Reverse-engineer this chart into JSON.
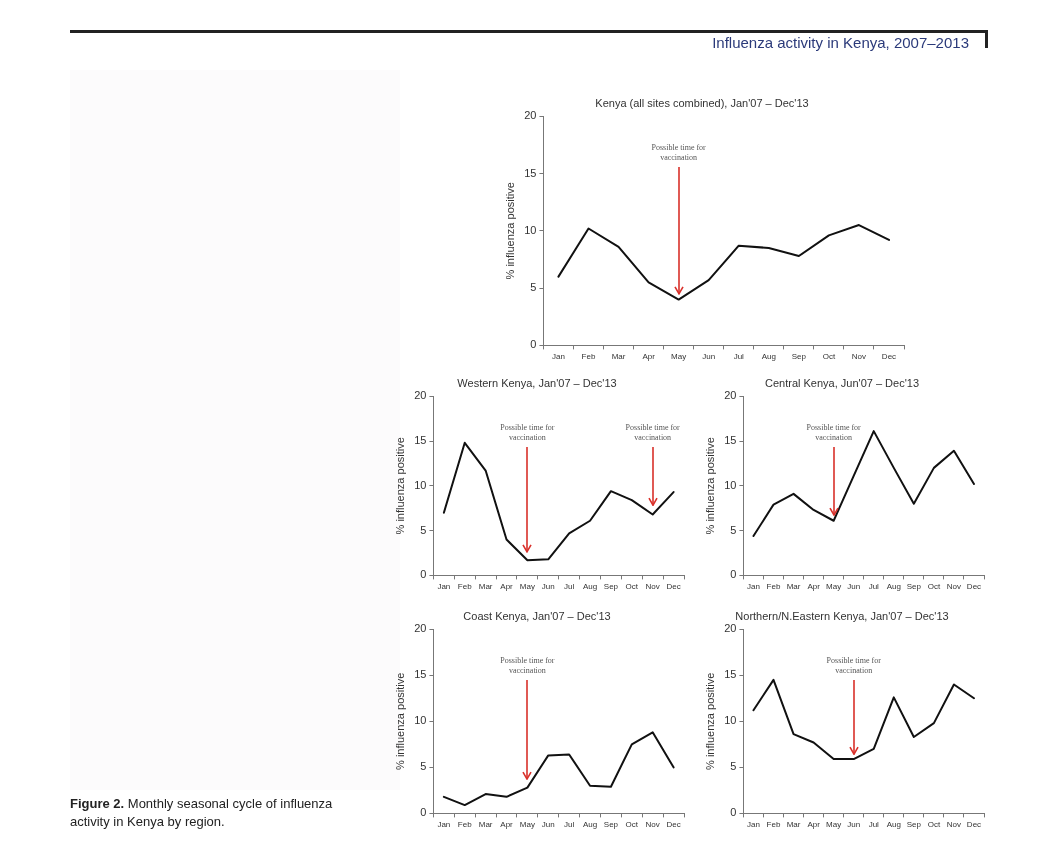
{
  "chart_data": [
    {
      "type": "line",
      "title": "Kenya (all sites combined), Jan'07 – Dec'13",
      "ylabel": "% influenza positive",
      "categories": [
        "Jan",
        "Feb",
        "Mar",
        "Apr",
        "May",
        "Jun",
        "Jul",
        "Aug",
        "Sep",
        "Oct",
        "Nov",
        "Dec"
      ],
      "series": [
        {
          "color": "#111111",
          "values": [
            6.0,
            10.2,
            8.6,
            5.5,
            4.0,
            5.7,
            8.7,
            8.5,
            7.8,
            9.6,
            10.5,
            9.2
          ]
        }
      ],
      "ylim": [
        0,
        20
      ],
      "yticks": [
        0,
        5,
        10,
        15,
        20
      ],
      "grid": false,
      "legend": false,
      "marker": "none",
      "line_style": "solid",
      "annotations": [
        "Influenza activity in Kenya, 2007–2013",
        "Figure 2. Monthly seasonal cycle of influenza activity in Kenya by region.",
        {
          "text": "Possible time for vaccination",
          "x": "May",
          "y": 4.4
        }
      ]
    },
    {
      "type": "line",
      "title": "Western Kenya, Jan'07 – Dec'13",
      "ylabel": "% influenza positive",
      "categories": [
        "Jan",
        "Feb",
        "Mar",
        "Apr",
        "May",
        "Jun",
        "Jul",
        "Aug",
        "Sep",
        "Oct",
        "Nov",
        "Dec"
      ],
      "series": [
        {
          "color": "#111111",
          "values": [
            7.0,
            14.8,
            11.7,
            4.0,
            1.7,
            1.8,
            4.7,
            6.1,
            9.4,
            8.4,
            6.8,
            9.3
          ]
        }
      ],
      "ylim": [
        0,
        20
      ],
      "yticks": [
        0,
        5,
        10,
        15,
        20
      ],
      "grid": false,
      "legend": false,
      "marker": "none",
      "line_style": "solid",
      "annotations": [
        {
          "text": "Possible time for vaccination",
          "x": "May",
          "y": 2.5
        },
        {
          "text": "Possible time for vaccination",
          "x": "Nov",
          "y": 7.7
        }
      ]
    },
    {
      "type": "line",
      "title": "Central Kenya, Jun'07 – Dec'13",
      "ylabel": "% influenza positive",
      "categories": [
        "Jan",
        "Feb",
        "Mar",
        "Apr",
        "May",
        "Jun",
        "Jul",
        "Aug",
        "Sep",
        "Oct",
        "Nov",
        "Dec"
      ],
      "series": [
        {
          "color": "#111111",
          "values": [
            4.4,
            7.9,
            9.1,
            7.3,
            6.1,
            11.1,
            16.1,
            12.0,
            8.0,
            12.0,
            13.9,
            10.2
          ]
        }
      ],
      "ylim": [
        0,
        20
      ],
      "yticks": [
        0,
        5,
        10,
        15,
        20
      ],
      "grid": false,
      "legend": false,
      "marker": "none",
      "line_style": "solid",
      "annotations": [
        {
          "text": "Possible time for vaccination",
          "x": "May",
          "y": 6.6
        }
      ]
    },
    {
      "type": "line",
      "title": "Coast Kenya, Jan'07 – Dec'13",
      "ylabel": "% influenza positive",
      "categories": [
        "Jan",
        "Feb",
        "Mar",
        "Apr",
        "May",
        "Jun",
        "Jul",
        "Aug",
        "Sep",
        "Oct",
        "Nov",
        "Dec"
      ],
      "series": [
        {
          "color": "#111111",
          "values": [
            1.8,
            0.9,
            2.1,
            1.8,
            2.8,
            6.3,
            6.4,
            3.0,
            2.9,
            7.5,
            8.8,
            5.0
          ]
        }
      ],
      "ylim": [
        0,
        20
      ],
      "yticks": [
        0,
        5,
        10,
        15,
        20
      ],
      "grid": false,
      "legend": false,
      "marker": "none",
      "line_style": "solid",
      "annotations": [
        {
          "text": "Possible time for vaccination",
          "x": "May",
          "y": 3.6
        }
      ]
    },
    {
      "type": "line",
      "title": "Northern/N.Eastern Kenya, Jan'07 – Dec'13",
      "ylabel": "% influenza positive",
      "categories": [
        "Jan",
        "Feb",
        "Mar",
        "Apr",
        "May",
        "Jun",
        "Jul",
        "Aug",
        "Sep",
        "Oct",
        "Nov",
        "Dec"
      ],
      "series": [
        {
          "color": "#111111",
          "values": [
            11.2,
            14.5,
            8.6,
            7.7,
            5.9,
            5.9,
            7.0,
            12.6,
            8.3,
            9.8,
            14.0,
            12.5
          ]
        }
      ],
      "ylim": [
        0,
        20
      ],
      "yticks": [
        0,
        5,
        10,
        15,
        20
      ],
      "grid": false,
      "legend": false,
      "marker": "none",
      "line_style": "solid",
      "annotations": [
        {
          "text": "Possible time for vaccination",
          "x": "Jun",
          "y": 6.3
        }
      ]
    }
  ]
}
